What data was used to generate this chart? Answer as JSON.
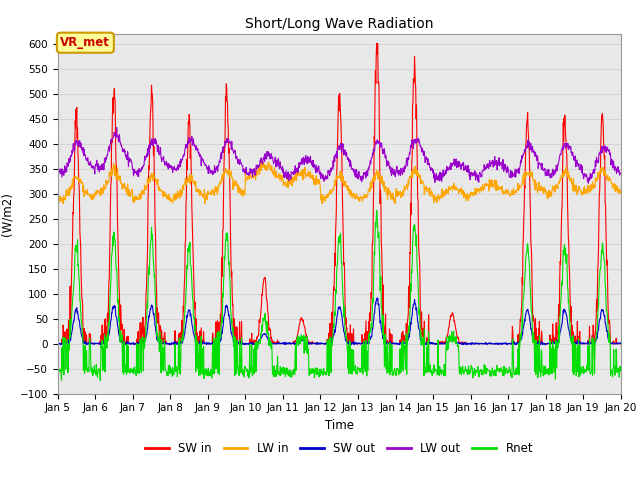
{
  "title": "Short/Long Wave Radiation",
  "xlabel": "Time",
  "ylabel": "(W/m2)",
  "ylim": [
    -100,
    620
  ],
  "yticks": [
    -100,
    -50,
    0,
    50,
    100,
    150,
    200,
    250,
    300,
    350,
    400,
    450,
    500,
    550,
    600
  ],
  "xtick_labels": [
    "Jan 5",
    "Jan 6",
    "Jan 7",
    "Jan 8",
    "Jan 9",
    "Jan 10",
    "Jan 11",
    "Jan 12",
    "Jan 13",
    "Jan 14",
    "Jan 15",
    "Jan 16",
    "Jan 17",
    "Jan 18",
    "Jan 19",
    "Jan 20"
  ],
  "colors": {
    "SW_in": "#ff0000",
    "LW_in": "#ffa500",
    "SW_out": "#0000cc",
    "LW_out": "#9900cc",
    "Rnet": "#00dd00"
  },
  "annotation_text": "VR_met",
  "annotation_color": "#cc0000",
  "annotation_bg": "#ffff99",
  "annotation_border": "#cc9900",
  "line_width": 0.8,
  "background_color": "#e8e8e8",
  "plot_bg": "#ffffff",
  "day_peaks_sw": [
    470,
    510,
    500,
    450,
    500,
    130,
    50,
    500,
    600,
    550,
    60,
    0,
    460,
    460,
    450
  ]
}
